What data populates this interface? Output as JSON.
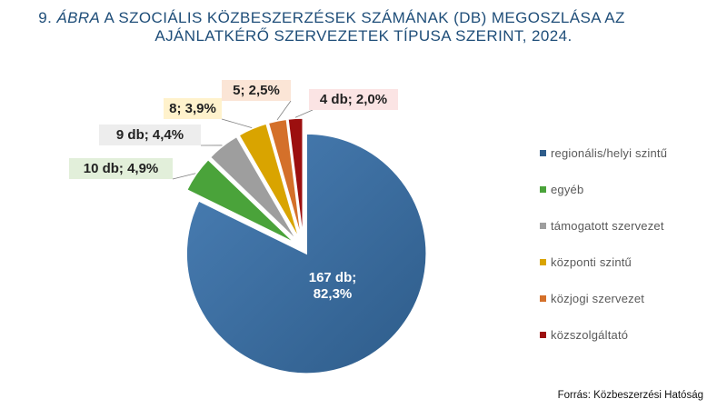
{
  "title": {
    "prefix": "9. ",
    "figure_word": "ÁBRA",
    "line1_rest": " A SZOCIÁLIS KÖZBESZERZÉSEK SZÁMÁNAK (DB) MEGOSZLÁSA AZ",
    "line2": "AJÁNLATKÉRŐ SZERVEZETEK TÍPUSA SZERINT, 2024."
  },
  "source": "Forrás: Közbeszerzési Hatóság",
  "chart_data": {
    "type": "pie",
    "title": "9. ÁBRA A SZOCIÁLIS KÖZBESZERZÉSEK SZÁMÁNAK (DB) MEGOSZLÁSA AZ AJÁNLATKÉRŐ SZERVEZETEK TÍPUSA SZERINT, 2024.",
    "unit": "db",
    "legend_position": "right",
    "slices": [
      {
        "name": "regionális/helyi szintű",
        "value": 167,
        "percent": 82.3,
        "label": "167 db;\n82,3%",
        "color": "#2e5c8a",
        "color_light": "#4a7fb5",
        "label_bg": ""
      },
      {
        "name": "egyéb",
        "value": 10,
        "percent": 4.9,
        "label": "10 db; 4,9%",
        "color": "#4aa33a",
        "color_light": "#4aa33a",
        "label_bg": "#e2efda"
      },
      {
        "name": "támogatott szervezet",
        "value": 9,
        "percent": 4.4,
        "label": "9 db; 4,4%",
        "color": "#9e9e9e",
        "color_light": "#9e9e9e",
        "label_bg": "#ededed"
      },
      {
        "name": "központi szintű",
        "value": 8,
        "percent": 3.9,
        "label": "8; 3,9%",
        "color": "#d9a400",
        "color_light": "#d9a400",
        "label_bg": "#fff2cc"
      },
      {
        "name": "közjogi szervezet",
        "value": 5,
        "percent": 2.5,
        "label": "5; 2,5%",
        "color": "#d4702a",
        "color_light": "#d4702a",
        "label_bg": "#fbe5d6"
      },
      {
        "name": "közszolgáltató",
        "value": 4,
        "percent": 2.0,
        "label": "4 db; 2,0%",
        "color": "#9c0f0f",
        "color_light": "#9c0f0f",
        "label_bg": "#fbe4e4"
      }
    ]
  }
}
